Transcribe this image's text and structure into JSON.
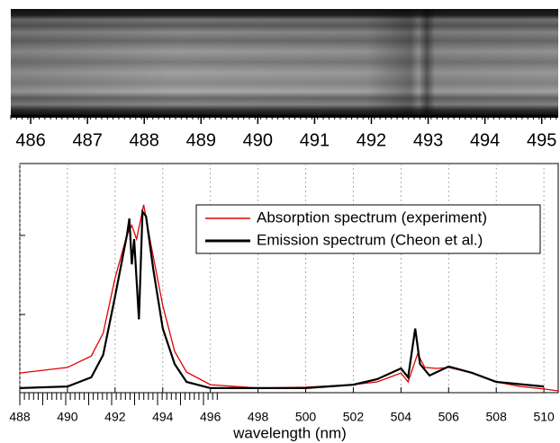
{
  "chart_data": [
    {
      "type": "image-strip",
      "xlim": [
        485.65,
        495.29
      ],
      "xticks": [
        486,
        487,
        488,
        489,
        490,
        491,
        492,
        493,
        494,
        495
      ]
    },
    {
      "type": "line",
      "xlabel": "wavelength (nm)",
      "xlim": [
        488,
        510.6
      ],
      "ylim": [
        0,
        1
      ],
      "xticks": [
        488,
        490,
        492,
        494,
        496,
        498,
        500,
        502,
        504,
        506,
        508,
        510
      ],
      "grid": true,
      "legend": "upper right",
      "series": [
        {
          "name": "Absorption spectrum (experiment)",
          "color": "#e00000",
          "x": [
            488,
            490,
            491,
            491.5,
            492,
            492.5,
            492.7,
            492.9,
            493.2,
            493.5,
            494,
            494.5,
            495,
            496,
            498,
            500,
            502,
            503,
            504,
            504.3,
            504.7,
            505,
            505.5,
            506,
            507,
            508,
            509,
            510,
            510.6
          ],
          "values": [
            0.086,
            0.11,
            0.16,
            0.26,
            0.5,
            0.69,
            0.73,
            0.67,
            0.82,
            0.65,
            0.38,
            0.18,
            0.09,
            0.035,
            0.02,
            0.024,
            0.035,
            0.047,
            0.086,
            0.047,
            0.17,
            0.11,
            0.106,
            0.11,
            0.086,
            0.047,
            0.027,
            0.016,
            0.008
          ]
        },
        {
          "name": "Emission spectrum (Cheon et al.)",
          "color": "#000000",
          "x": [
            488,
            490,
            491,
            491.5,
            492,
            492.5,
            492.6,
            492.7,
            492.8,
            493.0,
            493.15,
            493.3,
            493.6,
            494,
            494.5,
            495,
            496,
            500,
            502,
            503,
            504,
            504.3,
            504.6,
            504.8,
            505.2,
            506,
            507,
            508,
            510
          ],
          "values": [
            0.02,
            0.027,
            0.067,
            0.165,
            0.42,
            0.69,
            0.76,
            0.56,
            0.67,
            0.32,
            0.79,
            0.77,
            0.54,
            0.28,
            0.125,
            0.047,
            0.02,
            0.02,
            0.035,
            0.059,
            0.106,
            0.067,
            0.28,
            0.125,
            0.075,
            0.114,
            0.086,
            0.047,
            0.027
          ]
        }
      ]
    }
  ]
}
